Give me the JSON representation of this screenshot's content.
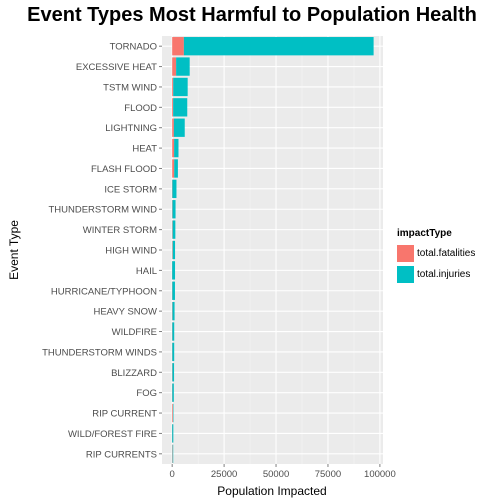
{
  "chart_data": {
    "type": "bar",
    "orientation": "horizontal",
    "stacked": true,
    "title": "Event Types Most Harmful to Population Health",
    "xlabel": "Population Impacted",
    "ylabel": "Event Type",
    "xlim": [
      0,
      100000
    ],
    "xticks": [
      "0",
      "25000",
      "50000",
      "75000",
      "100000"
    ],
    "xtick_values": [
      0,
      25000,
      50000,
      75000,
      100000
    ],
    "categories": [
      "TORNADO",
      "EXCESSIVE HEAT",
      "TSTM WIND",
      "FLOOD",
      "LIGHTNING",
      "HEAT",
      "FLASH FLOOD",
      "ICE STORM",
      "THUNDERSTORM WIND",
      "WINTER STORM",
      "HIGH WIND",
      "HAIL",
      "HURRICANE/TYPHOON",
      "HEAVY SNOW",
      "WILDFIRE",
      "THUNDERSTORM WINDS",
      "BLIZZARD",
      "FOG",
      "RIP CURRENT",
      "WILD/FOREST FIRE",
      "RIP CURRENTS"
    ],
    "series": [
      {
        "name": "total.fatalities",
        "color": "#F8766D",
        "values": [
          5633,
          1903,
          504,
          470,
          816,
          937,
          978,
          89,
          133,
          206,
          248,
          15,
          64,
          127,
          75,
          64,
          101,
          62,
          368,
          12,
          204
        ]
      },
      {
        "name": "total.injuries",
        "color": "#00BFC4",
        "values": [
          91346,
          6525,
          6957,
          6789,
          5230,
          2100,
          1777,
          1975,
          1488,
          1321,
          1137,
          1361,
          1275,
          1021,
          911,
          908,
          805,
          734,
          232,
          545,
          297
        ]
      }
    ],
    "legend": {
      "title": "impactType",
      "position": "right"
    },
    "grid": true
  }
}
